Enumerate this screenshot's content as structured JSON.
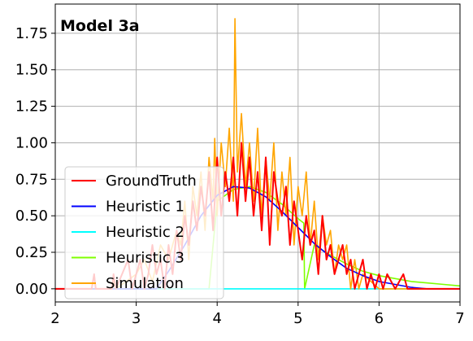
{
  "chart_data": {
    "type": "line",
    "title": "Model 3a",
    "xlabel": "",
    "ylabel": "",
    "xlim": [
      2,
      7
    ],
    "ylim": [
      -0.09,
      1.95
    ],
    "x_ticks": [
      2,
      3,
      4,
      5,
      6,
      7
    ],
    "y_ticks": [
      0.0,
      0.25,
      0.5,
      0.75,
      1.0,
      1.25,
      1.5,
      1.75
    ],
    "x_tick_labels": [
      "2",
      "3",
      "4",
      "5",
      "6",
      "7"
    ],
    "y_tick_labels": [
      "0.00",
      "0.25",
      "0.50",
      "0.75",
      "1.00",
      "1.25",
      "1.50",
      "1.75"
    ],
    "grid": true,
    "legend_position": "lower-left",
    "series": [
      {
        "name": "GroundTruth",
        "color": "#ff0000",
        "x": [
          2.0,
          2.45,
          2.48,
          2.5,
          2.7,
          2.72,
          2.75,
          2.9,
          2.95,
          3.0,
          3.05,
          3.1,
          3.15,
          3.2,
          3.25,
          3.3,
          3.35,
          3.4,
          3.45,
          3.5,
          3.55,
          3.6,
          3.65,
          3.7,
          3.75,
          3.8,
          3.85,
          3.9,
          3.95,
          4.0,
          4.05,
          4.1,
          4.15,
          4.2,
          4.25,
          4.3,
          4.35,
          4.4,
          4.45,
          4.5,
          4.55,
          4.6,
          4.65,
          4.7,
          4.75,
          4.8,
          4.85,
          4.9,
          4.95,
          5.0,
          5.05,
          5.1,
          5.15,
          5.2,
          5.25,
          5.3,
          5.35,
          5.4,
          5.45,
          5.5,
          5.55,
          5.6,
          5.65,
          5.7,
          5.75,
          5.8,
          5.85,
          5.9,
          5.95,
          6.0,
          6.05,
          6.1,
          6.2,
          6.3,
          6.35,
          6.4,
          7.0
        ],
        "y": [
          0.0,
          0.0,
          0.1,
          0.0,
          0.0,
          0.1,
          0.0,
          0.2,
          0.0,
          0.1,
          0.2,
          0.0,
          0.1,
          0.3,
          0.1,
          0.2,
          0.0,
          0.3,
          0.1,
          0.4,
          0.2,
          0.5,
          0.3,
          0.6,
          0.4,
          0.7,
          0.5,
          0.8,
          0.4,
          0.9,
          0.5,
          0.8,
          0.6,
          0.9,
          0.5,
          1.0,
          0.6,
          0.9,
          0.5,
          0.8,
          0.4,
          0.9,
          0.3,
          0.8,
          0.6,
          0.5,
          0.7,
          0.3,
          0.6,
          0.4,
          0.2,
          0.5,
          0.3,
          0.4,
          0.1,
          0.5,
          0.2,
          0.3,
          0.1,
          0.2,
          0.3,
          0.1,
          0.2,
          0.0,
          0.1,
          0.2,
          0.0,
          0.1,
          0.0,
          0.1,
          0.0,
          0.1,
          0.0,
          0.1,
          0.0,
          0.0,
          0.0
        ]
      },
      {
        "name": "Heuristic 1",
        "color": "#0000ff",
        "x": [
          2.0,
          3.25,
          3.4,
          3.6,
          3.8,
          4.0,
          4.2,
          4.4,
          4.6,
          4.8,
          5.0,
          5.2,
          5.4,
          5.6,
          5.8,
          6.0,
          6.2,
          6.4,
          6.6,
          7.0
        ],
        "y": [
          0.0,
          0.0,
          0.12,
          0.3,
          0.5,
          0.64,
          0.7,
          0.69,
          0.63,
          0.53,
          0.42,
          0.31,
          0.22,
          0.14,
          0.09,
          0.05,
          0.03,
          0.01,
          0.0,
          0.0
        ]
      },
      {
        "name": "Heuristic 2",
        "color": "#00ffff",
        "x": [
          2.0,
          7.0
        ],
        "y": [
          0.0,
          0.0
        ]
      },
      {
        "name": "Heuristic 3",
        "color": "#7fff00",
        "x": [
          2.0,
          3.9,
          4.0,
          4.2,
          4.4,
          4.6,
          4.8,
          5.0,
          5.07,
          5.08,
          5.2,
          5.4,
          5.6,
          5.8,
          6.0,
          6.2,
          6.4,
          6.6,
          6.8,
          7.0
        ],
        "y": [
          0.0,
          0.0,
          0.6,
          0.68,
          0.7,
          0.66,
          0.58,
          0.48,
          0.45,
          0.0,
          0.3,
          0.23,
          0.17,
          0.12,
          0.09,
          0.07,
          0.05,
          0.04,
          0.03,
          0.02
        ]
      },
      {
        "name": "Simulation",
        "color": "#ffa500",
        "x": [
          2.0,
          2.7,
          2.72,
          2.75,
          3.0,
          3.1,
          3.2,
          3.3,
          3.4,
          3.5,
          3.55,
          3.6,
          3.65,
          3.7,
          3.75,
          3.8,
          3.85,
          3.9,
          3.95,
          3.97,
          4.0,
          4.05,
          4.1,
          4.15,
          4.2,
          4.22,
          4.25,
          4.3,
          4.35,
          4.4,
          4.45,
          4.5,
          4.55,
          4.6,
          4.65,
          4.7,
          4.75,
          4.8,
          4.85,
          4.9,
          4.95,
          5.0,
          5.05,
          5.1,
          5.15,
          5.2,
          5.25,
          5.3,
          5.35,
          5.4,
          5.45,
          5.5,
          5.55,
          5.6,
          5.65,
          5.7,
          5.75,
          5.8,
          6.0,
          6.2,
          6.4,
          7.0
        ],
        "y": [
          0.0,
          0.0,
          0.05,
          0.0,
          0.1,
          0.2,
          0.05,
          0.3,
          0.2,
          0.4,
          0.3,
          0.6,
          0.2,
          0.7,
          0.5,
          0.8,
          0.4,
          0.9,
          0.6,
          1.03,
          0.5,
          1.0,
          0.7,
          1.1,
          0.6,
          1.85,
          0.8,
          1.2,
          0.7,
          1.0,
          0.6,
          1.1,
          0.5,
          0.9,
          0.6,
          1.0,
          0.4,
          0.8,
          0.5,
          0.9,
          0.3,
          0.7,
          0.5,
          0.8,
          0.3,
          0.6,
          0.2,
          0.5,
          0.3,
          0.4,
          0.1,
          0.3,
          0.2,
          0.3,
          0.0,
          0.2,
          0.0,
          0.1,
          0.0,
          0.0,
          0.0,
          0.0
        ]
      }
    ]
  }
}
